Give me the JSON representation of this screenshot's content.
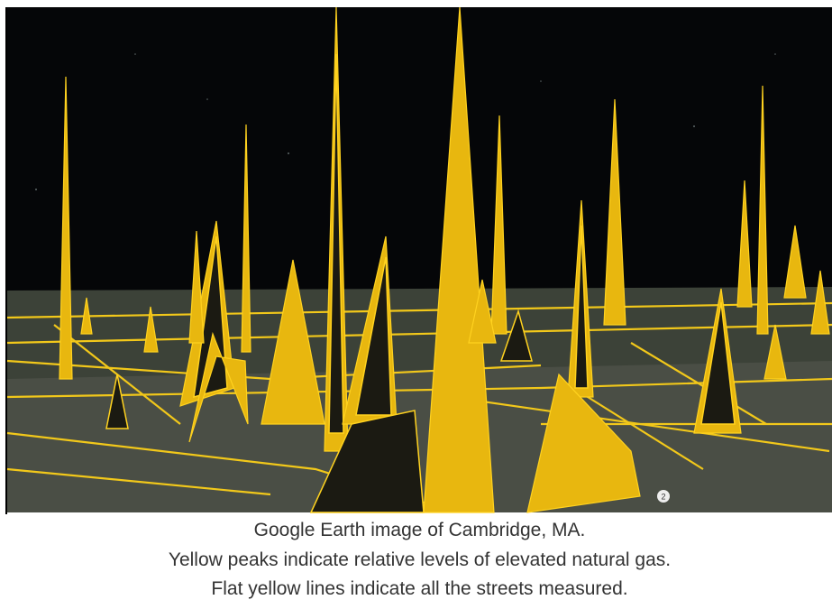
{
  "image": {
    "marker_label": "2"
  },
  "caption": {
    "lines": [
      "Google Earth image of Cambridge, MA.",
      "Yellow peaks indicate relative levels of elevated natural gas.",
      "Flat yellow lines indicate all the streets measured."
    ]
  }
}
